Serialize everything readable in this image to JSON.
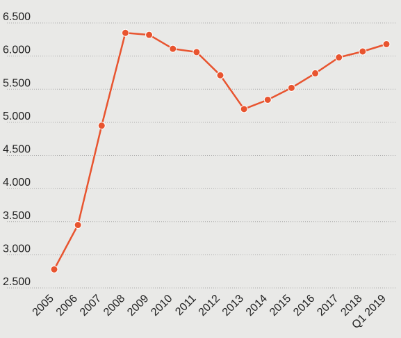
{
  "chart_data": {
    "type": "line",
    "title": "",
    "xlabel": "",
    "ylabel": "",
    "categories": [
      "2005",
      "2006",
      "2007",
      "2008",
      "2009",
      "2010",
      "2011",
      "2012",
      "2013",
      "2014",
      "2015",
      "2016",
      "2017",
      "2018",
      "Q1 2019"
    ],
    "series": [
      {
        "values": [
          2780,
          3450,
          4950,
          6350,
          6320,
          6110,
          6060,
          5710,
          5200,
          5340,
          5520,
          5740,
          5980,
          6070,
          6180
        ]
      }
    ],
    "ylim": [
      2500,
      6500
    ],
    "yticks": [
      2500,
      3000,
      3500,
      4000,
      4500,
      5000,
      5500,
      6000,
      6500
    ],
    "ytick_labels": [
      "2.500",
      "3.000",
      "3.500",
      "4.000",
      "4.500",
      "5.000",
      "5.500",
      "6.000",
      "6.500"
    ],
    "grid": true,
    "legend": "none",
    "colors": {
      "line": "#e8542f",
      "marker": "#e8542f",
      "background": "#e9e9e7",
      "grid": "#a9a9a9",
      "text": "#222222"
    }
  }
}
